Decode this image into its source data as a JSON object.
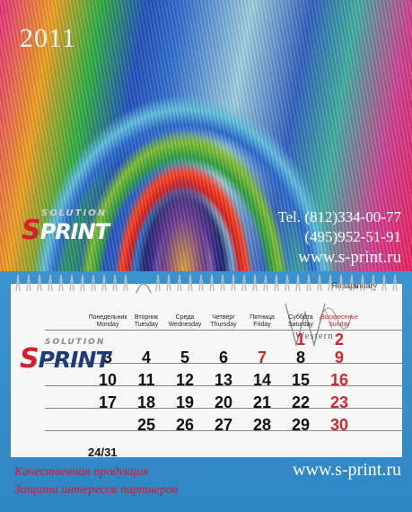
{
  "header": {
    "year": "2011",
    "logo": {
      "top_word": "SOLUTION",
      "main_first": "S",
      "main_rest": "PRINT"
    },
    "phone_1": "Tel. (812)334-00-77",
    "phone_2": "(495)952-51-91",
    "website": "www.s-print.ru"
  },
  "calendar": {
    "month_ru": "Январь",
    "month_en": "January",
    "day_names": [
      {
        "ru": "Понедельник",
        "en": "Monday"
      },
      {
        "ru": "Вторник",
        "en": "Tuesday"
      },
      {
        "ru": "Среда",
        "en": "Wednesday"
      },
      {
        "ru": "Четверг",
        "en": "Thursday"
      },
      {
        "ru": "Пятница",
        "en": "Friday"
      },
      {
        "ru": "Суббота",
        "en": "Saturday"
      },
      {
        "ru": "Воскресенье",
        "en": "Sunday"
      }
    ],
    "weeks": [
      [
        "",
        "",
        "",
        "",
        "",
        "1",
        "2"
      ],
      [
        "3",
        "4",
        "5",
        "6",
        "7",
        "8",
        "9"
      ],
      [
        "10",
        "11",
        "12",
        "13",
        "14",
        "15",
        "16"
      ],
      [
        "17",
        "18",
        "19",
        "20",
        "21",
        "22",
        "23"
      ],
      [
        "",
        "25",
        "26",
        "27",
        "28",
        "29",
        "30"
      ]
    ],
    "holiday_days": [
      "1",
      "2",
      "7",
      "9",
      "16",
      "23",
      "30"
    ],
    "combined_cell": "24/31",
    "logo": {
      "top_word": "SOLUTION",
      "main_first": "S",
      "main_rest": "PRINT"
    },
    "watermark_text": "Western"
  },
  "footer": {
    "tagline_1": "Качественная продукция",
    "tagline_2": "Защита интересов партнеров",
    "website": "www.s-print.ru"
  },
  "colors": {
    "accent_red": "#d0282e",
    "brand_blue": "#1d3a7a",
    "background": "#3a8fc8"
  }
}
